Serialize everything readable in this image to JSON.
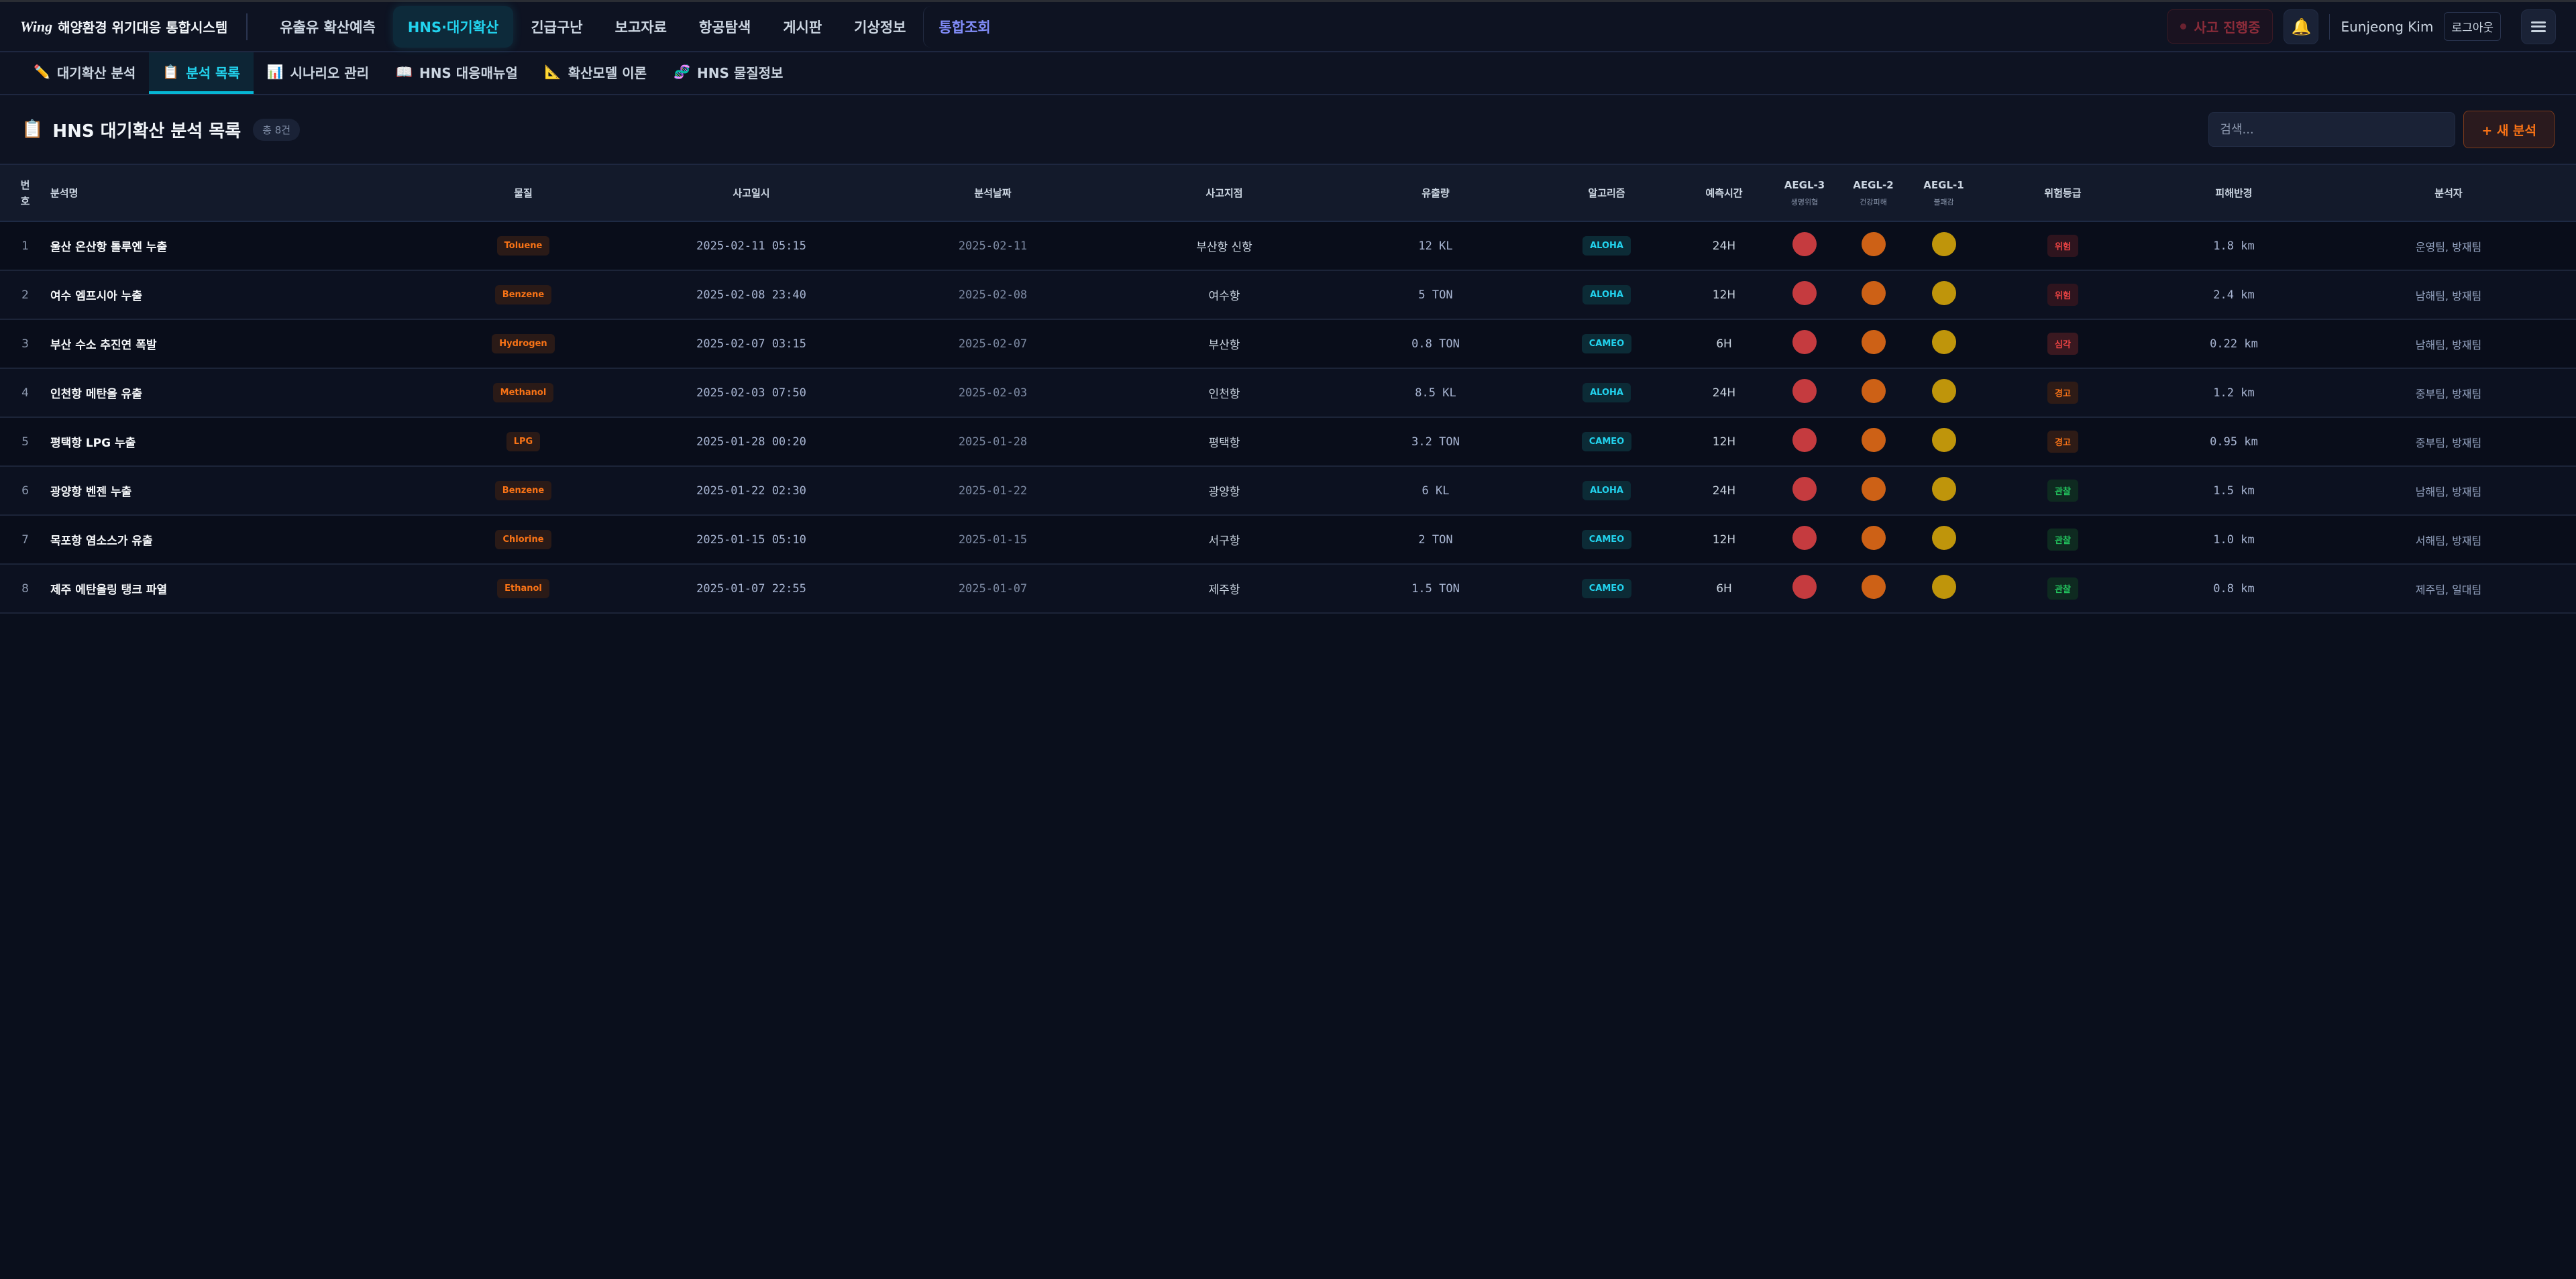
{
  "app": {
    "logo_mark": "Wing",
    "title": "해양환경 위기대응 통합시스템"
  },
  "nav": [
    {
      "label": "유출유 확산예측"
    },
    {
      "label": "HNS·대기확산",
      "active": true
    },
    {
      "label": "긴급구난"
    },
    {
      "label": "보고자료"
    },
    {
      "label": "항공탐색"
    },
    {
      "label": "게시판"
    },
    {
      "label": "기상정보"
    },
    {
      "label": "통합조회",
      "special": true
    }
  ],
  "header_right": {
    "incident": "사고 진행중",
    "user": "Eunjeong Kim",
    "logout": "로그아웃",
    "bell_icon": "bell-icon",
    "menu_icon": "hamburger-icon"
  },
  "subnav": [
    {
      "icon": "✏️",
      "label": "대기확산 분석"
    },
    {
      "icon": "📋",
      "label": "분석 목록",
      "active": true
    },
    {
      "icon": "📊",
      "label": "시나리오 관리"
    },
    {
      "icon": "📖",
      "label": "HNS 대응매뉴얼"
    },
    {
      "icon": "📐",
      "label": "확산모델 이론"
    },
    {
      "icon": "🧬",
      "label": "HNS 물질정보"
    }
  ],
  "page": {
    "icon": "📋",
    "title": "HNS 대기확산 분석 목록",
    "count": "총 8건",
    "search_placeholder": "검색...",
    "new_button": "+ 새 분석"
  },
  "colors": {
    "aegl3": "#c53b3f",
    "aegl2": "#cd6116",
    "aegl1": "#bf950b",
    "accent": "#22d3ee"
  },
  "columns": {
    "no": "번\n호",
    "name": "분석명",
    "substance": "물질",
    "incident_time": "사고일시",
    "analysis_date": "분석날짜",
    "location": "사고지점",
    "amount": "유출량",
    "algorithm": "알고리즘",
    "forecast": "예측시간",
    "aegl3": "AEGL-3",
    "aegl3_sub": "생명위협",
    "aegl2": "AEGL-2",
    "aegl2_sub": "건강피해",
    "aegl1": "AEGL-1",
    "aegl1_sub": "불쾌감",
    "risk": "위험등급",
    "radius": "피해반경",
    "analyst": "분석자"
  },
  "rows": [
    {
      "no": "1",
      "name": "울산 온산항 톨루엔 누출",
      "substance": "Toluene",
      "incident_time": "2025-02-11 05:15",
      "analysis_date": "2025-02-11",
      "location": "부산항 신항",
      "amount": "12 KL",
      "algorithm": "ALOHA",
      "forecast": "24H",
      "risk": "위험",
      "radius": "1.8 km",
      "analyst": "운영팀, 방재팀"
    },
    {
      "no": "2",
      "name": "여수 엠프시아 누출",
      "substance": "Benzene",
      "incident_time": "2025-02-08 23:40",
      "analysis_date": "2025-02-08",
      "location": "여수항",
      "amount": "5 TON",
      "algorithm": "ALOHA",
      "forecast": "12H",
      "risk": "위험",
      "radius": "2.4 km",
      "analyst": "남해팀, 방재팀"
    },
    {
      "no": "3",
      "name": "부산 수소 추진연 폭발",
      "substance": "Hydrogen",
      "incident_time": "2025-02-07 03:15",
      "analysis_date": "2025-02-07",
      "location": "부산항",
      "amount": "0.8 TON",
      "algorithm": "CAMEO",
      "forecast": "6H",
      "risk": "심각",
      "radius": "0.22 km",
      "analyst": "남해팀, 방재팀"
    },
    {
      "no": "4",
      "name": "인천항 메탄올 유출",
      "substance": "Methanol",
      "incident_time": "2025-02-03 07:50",
      "analysis_date": "2025-02-03",
      "location": "인천항",
      "amount": "8.5 KL",
      "algorithm": "ALOHA",
      "forecast": "24H",
      "risk": "경고",
      "radius": "1.2 km",
      "analyst": "중부팀, 방재팀"
    },
    {
      "no": "5",
      "name": "평택항 LPG 누출",
      "substance": "LPG",
      "incident_time": "2025-01-28 00:20",
      "analysis_date": "2025-01-28",
      "location": "평택항",
      "amount": "3.2 TON",
      "algorithm": "CAMEO",
      "forecast": "12H",
      "risk": "경고",
      "radius": "0.95 km",
      "analyst": "중부팀, 방재팀"
    },
    {
      "no": "6",
      "name": "광양항 벤젠 누출",
      "substance": "Benzene",
      "incident_time": "2025-01-22 02:30",
      "analysis_date": "2025-01-22",
      "location": "광양항",
      "amount": "6 KL",
      "algorithm": "ALOHA",
      "forecast": "24H",
      "risk": "관찰",
      "radius": "1.5 km",
      "analyst": "남해팀, 방재팀"
    },
    {
      "no": "7",
      "name": "목포항 염소스가 유출",
      "substance": "Chlorine",
      "incident_time": "2025-01-15 05:10",
      "analysis_date": "2025-01-15",
      "location": "서구항",
      "amount": "2 TON",
      "algorithm": "CAMEO",
      "forecast": "12H",
      "risk": "관찰",
      "radius": "1.0 km",
      "analyst": "서해팀, 방재팀"
    },
    {
      "no": "8",
      "name": "제주 에탄올링 탱크 파열",
      "substance": "Ethanol",
      "incident_time": "2025-01-07 22:55",
      "analysis_date": "2025-01-07",
      "location": "제주항",
      "amount": "1.5 TON",
      "algorithm": "CAMEO",
      "forecast": "6H",
      "risk": "관찰",
      "radius": "0.8 km",
      "analyst": "제주팀, 일대팀"
    }
  ]
}
